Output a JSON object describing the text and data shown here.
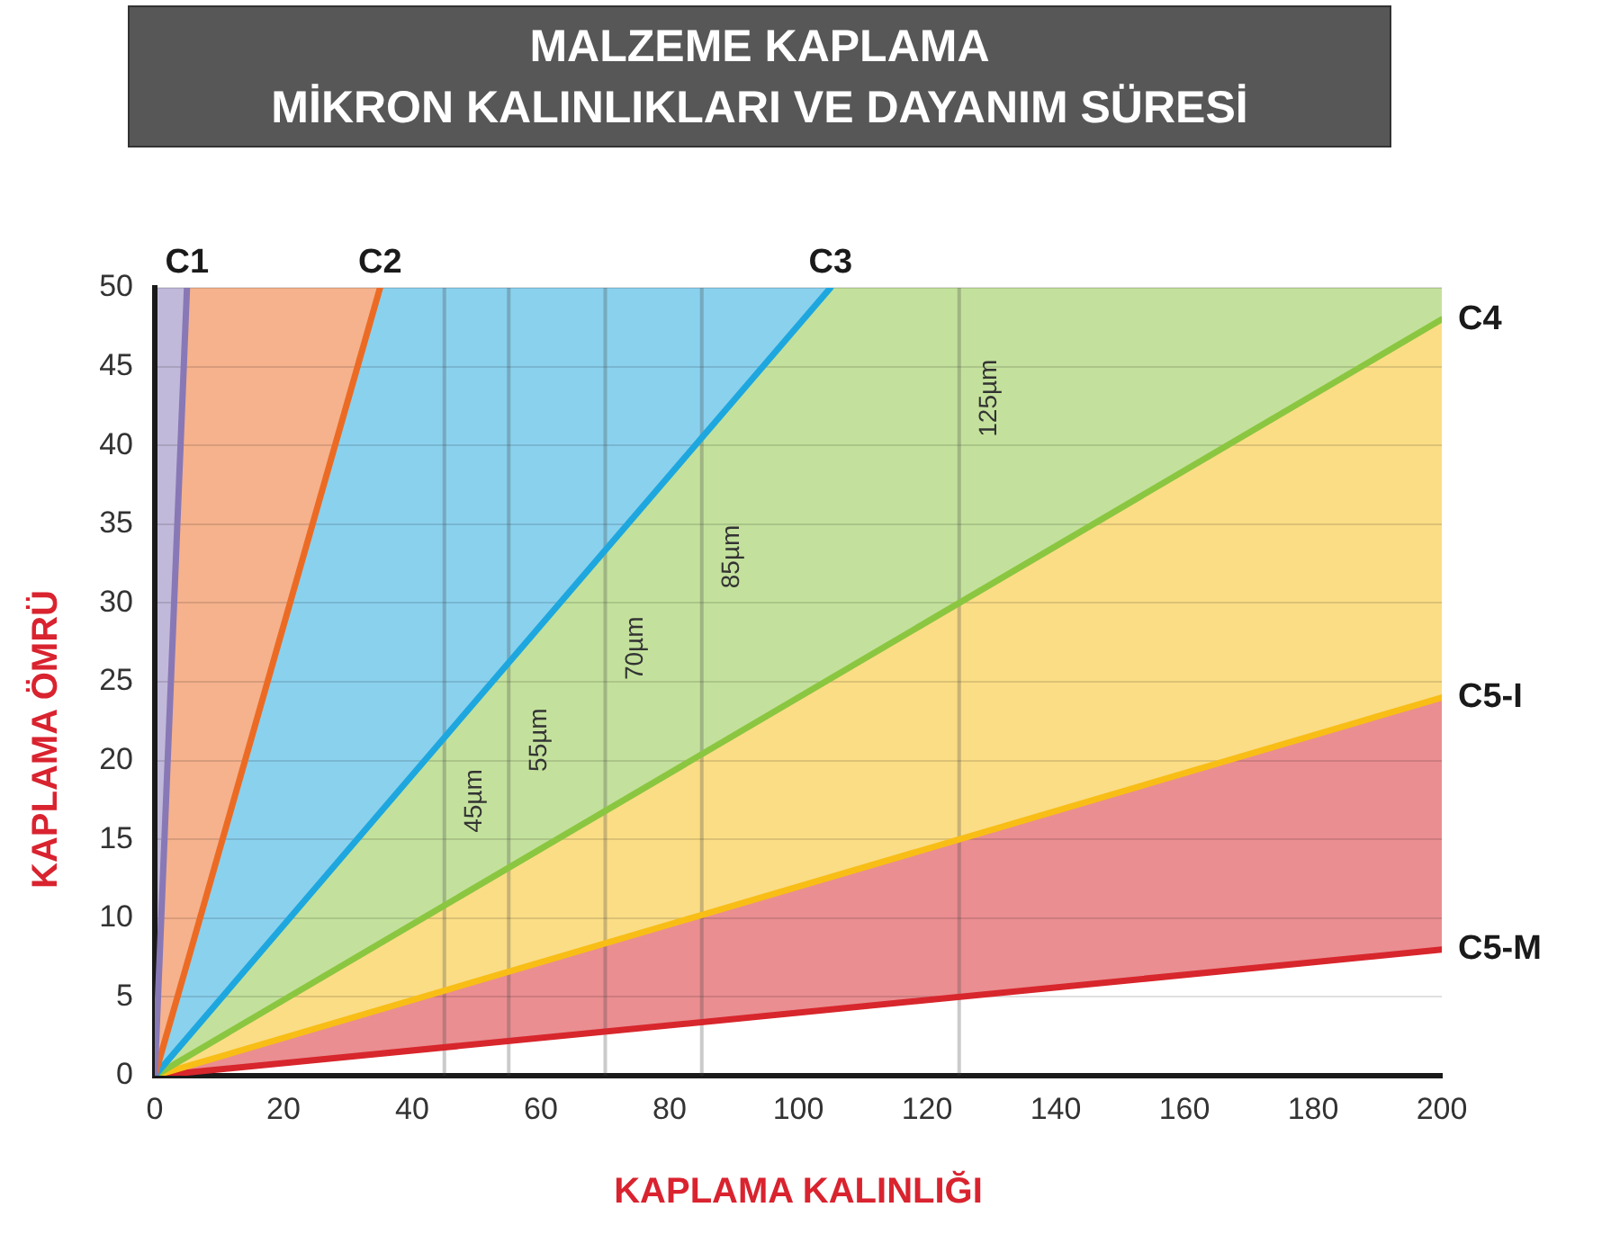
{
  "chart_data": {
    "type": "line",
    "title": "MALZEME KAPLAMA\nMİKRON KALINLIKLARI VE DAYANIM SÜRESİ",
    "xlabel": "KAPLAMA KALINLIĞI",
    "ylabel": "KAPLAMA ÖMRÜ",
    "xlim": [
      0,
      200
    ],
    "ylim": [
      0,
      50
    ],
    "xticks": [
      0,
      20,
      40,
      60,
      80,
      100,
      120,
      140,
      160,
      180,
      200
    ],
    "yticks": [
      0,
      5,
      10,
      15,
      20,
      25,
      30,
      35,
      40,
      45,
      50
    ],
    "grid": "y",
    "series": [
      {
        "name": "C1",
        "color": "#8878b6",
        "x": [
          0,
          5
        ],
        "values": [
          0,
          50
        ],
        "lower": [
          0,
          50
        ],
        "upper": [
          50,
          50
        ]
      },
      {
        "name": "C2",
        "color": "#ec6b24",
        "x": [
          0,
          5,
          35
        ],
        "values": [
          0,
          7.1,
          50
        ],
        "lower": [
          0,
          7.1,
          50
        ],
        "upper": [
          0,
          50,
          50
        ]
      },
      {
        "name": "C3",
        "color": "#1ea7df",
        "x": [
          0,
          35,
          105
        ],
        "values": [
          0,
          16.7,
          50
        ],
        "lower": [
          0,
          16.7,
          50
        ],
        "upper": [
          0,
          50,
          50
        ]
      },
      {
        "name": "C4",
        "color": "#8bc640",
        "x": [
          0,
          105,
          200
        ],
        "values": [
          0,
          25.2,
          48
        ],
        "lower": [
          0,
          25.2,
          48
        ],
        "upper": [
          0,
          50,
          50
        ]
      },
      {
        "name": "C5-I",
        "color": "#f8be16",
        "x": [
          0,
          200
        ],
        "values": [
          0,
          24
        ],
        "lower": [
          0,
          24
        ],
        "upper": [
          0,
          48
        ]
      },
      {
        "name": "C5-M",
        "color": "#d7262c",
        "x": [
          0,
          200
        ],
        "values": [
          0,
          8
        ],
        "lower": [
          0,
          8
        ],
        "upper": [
          0,
          24
        ]
      }
    ],
    "ref_lines": [
      {
        "axis": "x",
        "value": 45,
        "label": "45µm"
      },
      {
        "axis": "x",
        "value": 55,
        "label": "55µm"
      },
      {
        "axis": "x",
        "value": 70,
        "label": "70µm"
      },
      {
        "axis": "x",
        "value": 85,
        "label": "85µm"
      },
      {
        "axis": "x",
        "value": 125,
        "label": "125µm"
      }
    ]
  }
}
